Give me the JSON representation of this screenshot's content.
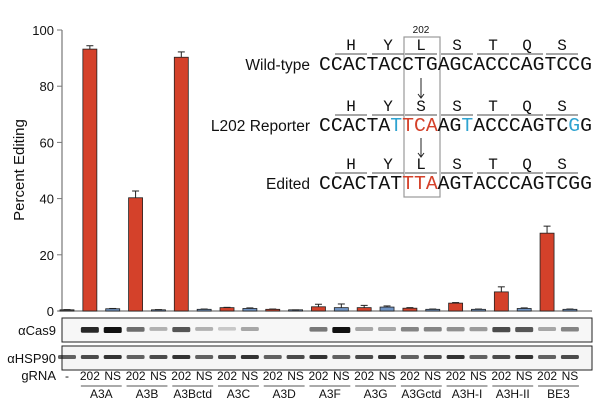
{
  "chart_data": {
    "type": "bar",
    "ylabel": "Percent Editing",
    "ylim": [
      0,
      100
    ],
    "yticks": [
      0,
      20,
      40,
      60,
      80,
      100
    ],
    "grid": false,
    "colors": {
      "202": "#d4412a",
      "NS": "#6f93c3",
      "none": "#555555"
    },
    "bars": [
      {
        "group": "",
        "grna": "-",
        "value": 0.4,
        "sd": 0.1
      },
      {
        "group": "A3A",
        "grna": "202",
        "value": 93.2,
        "sd": 1.2
      },
      {
        "group": "A3A",
        "grna": "NS",
        "value": 0.8,
        "sd": 0.1
      },
      {
        "group": "A3B",
        "grna": "202",
        "value": 40.3,
        "sd": 2.4
      },
      {
        "group": "A3B",
        "grna": "NS",
        "value": 0.4,
        "sd": 0.1
      },
      {
        "group": "A3Bctd",
        "grna": "202",
        "value": 90.3,
        "sd": 1.9
      },
      {
        "group": "A3Bctd",
        "grna": "NS",
        "value": 0.6,
        "sd": 0.1
      },
      {
        "group": "A3C",
        "grna": "202",
        "value": 1.2,
        "sd": 0.1
      },
      {
        "group": "A3C",
        "grna": "NS",
        "value": 0.9,
        "sd": 0.2
      },
      {
        "group": "A3D",
        "grna": "202",
        "value": 0.6,
        "sd": 0.1
      },
      {
        "group": "A3D",
        "grna": "NS",
        "value": 0.3,
        "sd": 0.1
      },
      {
        "group": "A3F",
        "grna": "202",
        "value": 1.5,
        "sd": 0.9
      },
      {
        "group": "A3F",
        "grna": "NS",
        "value": 1.2,
        "sd": 1.3
      },
      {
        "group": "A3G",
        "grna": "202",
        "value": 1.2,
        "sd": 0.8
      },
      {
        "group": "A3G",
        "grna": "NS",
        "value": 1.4,
        "sd": 0.4
      },
      {
        "group": "A3Gctd",
        "grna": "202",
        "value": 1.0,
        "sd": 0.2
      },
      {
        "group": "A3Gctd",
        "grna": "NS",
        "value": 0.6,
        "sd": 0.1
      },
      {
        "group": "A3H-I",
        "grna": "202",
        "value": 2.8,
        "sd": 0.2
      },
      {
        "group": "A3H-I",
        "grna": "NS",
        "value": 0.6,
        "sd": 0.1
      },
      {
        "group": "A3H-II",
        "grna": "202",
        "value": 6.8,
        "sd": 1.8
      },
      {
        "group": "A3H-II",
        "grna": "NS",
        "value": 0.9,
        "sd": 0.2
      },
      {
        "group": "BE3",
        "grna": "202",
        "value": 27.7,
        "sd": 2.5
      },
      {
        "group": "BE3",
        "grna": "NS",
        "value": 0.6,
        "sd": 0.1
      }
    ],
    "groups": [
      "A3A",
      "A3B",
      "A3Bctd",
      "A3C",
      "A3D",
      "A3F",
      "A3G",
      "A3Gctd",
      "A3H-I",
      "A3H-II",
      "BE3"
    ]
  },
  "blots": {
    "row1": "αCas9",
    "row2": "αHSP90",
    "grna_label": "gRNA"
  },
  "sequences": {
    "position": "202",
    "amino_acids": [
      [
        "H",
        "Y",
        "L",
        "S",
        "T",
        "Q",
        "S"
      ],
      [
        "H",
        "Y",
        "S",
        "S",
        "T",
        "Q",
        "S"
      ],
      [
        "H",
        "Y",
        "L",
        "S",
        "T",
        "Q",
        "S"
      ]
    ],
    "rows": [
      {
        "label": "Wild-type",
        "segments": [
          {
            "text": "CCACTACCTGAGCACCCAGTCCG",
            "color": "#111111"
          }
        ]
      },
      {
        "label": "L202 Reporter",
        "segments": [
          {
            "text": "CCACTA",
            "color": "#111111"
          },
          {
            "text": "T",
            "color": "#2fa3d0"
          },
          {
            "text": "TCA",
            "color": "#d4412a"
          },
          {
            "text": "AG",
            "color": "#111111"
          },
          {
            "text": "T",
            "color": "#2fa3d0"
          },
          {
            "text": "ACCCAGTC",
            "color": "#111111"
          },
          {
            "text": "G",
            "color": "#2fa3d0"
          },
          {
            "text": "G",
            "color": "#111111"
          }
        ]
      },
      {
        "label": "Edited",
        "segments": [
          {
            "text": "CCACTAT",
            "color": "#111111"
          },
          {
            "text": "TTA",
            "color": "#d4412a"
          },
          {
            "text": "AGTACCCAGTCGG",
            "color": "#111111"
          }
        ]
      }
    ]
  }
}
